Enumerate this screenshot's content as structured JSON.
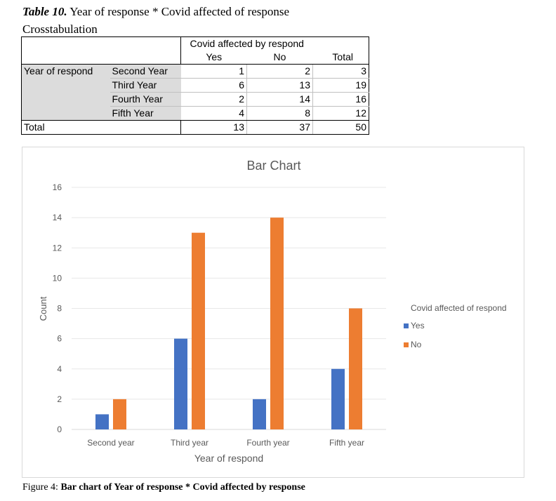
{
  "caption_top": {
    "table_number": "Table 10.",
    "title_line1": "Year of response * Covid affected of response",
    "title_line2": "Crosstabulation"
  },
  "table": {
    "group_header": "Covid affected by respond",
    "col_yes": "Yes",
    "col_no": "No",
    "col_total": "Total",
    "row_var": "Year of respond",
    "rows": [
      {
        "label": "Second Year",
        "yes": "1",
        "no": "2",
        "total": "3"
      },
      {
        "label": "Third Year",
        "yes": "6",
        "no": "13",
        "total": "19"
      },
      {
        "label": "Fourth Year",
        "yes": "2",
        "no": "14",
        "total": "16"
      },
      {
        "label": "Fifth Year",
        "yes": "4",
        "no": "8",
        "total": "12"
      }
    ],
    "total_row": {
      "label": "Total",
      "yes": "13",
      "no": "37",
      "total": "50"
    }
  },
  "chart_data": {
    "type": "bar",
    "title": "Bar Chart",
    "xlabel": "Year of respond",
    "ylabel": "Count",
    "categories": [
      "Second year",
      "Third year",
      "Fourth year",
      "Fifth year"
    ],
    "series": [
      {
        "name": "Yes",
        "values": [
          1,
          6,
          2,
          4
        ],
        "color": "#4472c4"
      },
      {
        "name": "No",
        "values": [
          2,
          13,
          14,
          8
        ],
        "color": "#ed7d31"
      }
    ],
    "ylim": [
      0,
      16
    ],
    "yticks": [
      0,
      2,
      4,
      6,
      8,
      10,
      12,
      14,
      16
    ],
    "grid": true,
    "legend_title": "Covid affected of respond",
    "legend_position": "right"
  },
  "caption_bottom": {
    "prefix": "Figure 4:",
    "text": "Bar chart of Year of response * Covid affected by response"
  }
}
